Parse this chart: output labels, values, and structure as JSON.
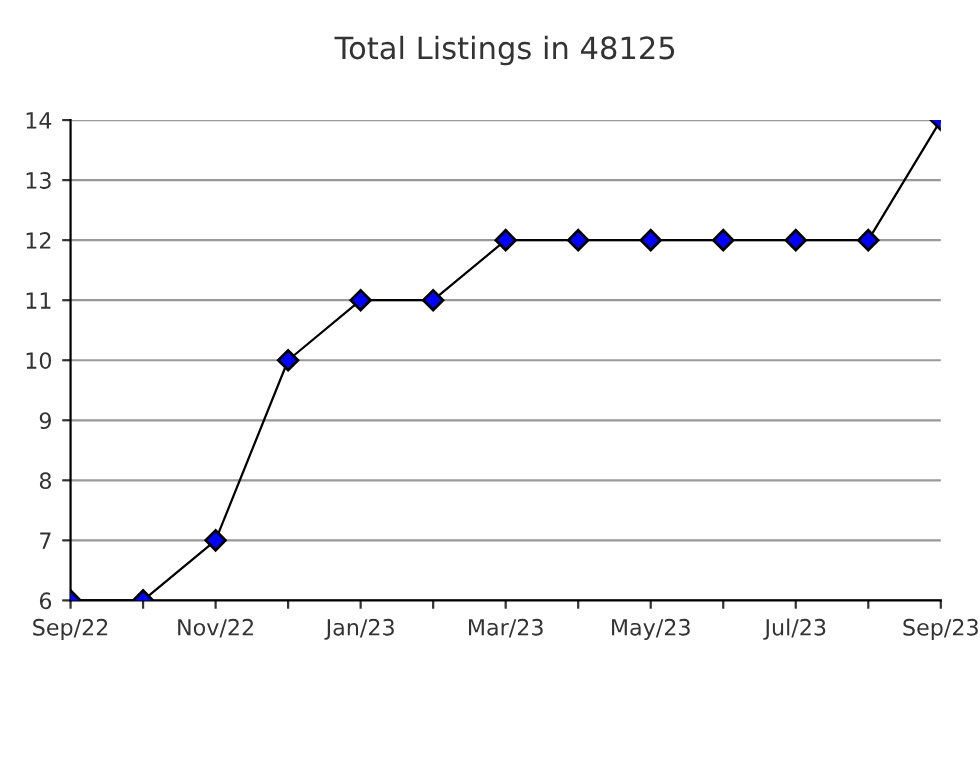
{
  "chart_data": {
    "type": "line",
    "title": "Total Listings in 48125",
    "categories": [
      "Sep/22",
      null,
      "Nov/22",
      null,
      "Jan/23",
      null,
      "Mar/23",
      null,
      "May/23",
      null,
      "Jul/23",
      null,
      "Sep/23"
    ],
    "series": [
      {
        "color": "#000000",
        "values": [
          6,
          6,
          7,
          10,
          11,
          11,
          12,
          12,
          12,
          12,
          12,
          12,
          14
        ]
      }
    ],
    "ylim": [
      6,
      14
    ],
    "yticks": [
      6,
      7,
      8,
      9,
      10,
      11,
      12,
      13,
      14
    ],
    "grid": "y",
    "marker": "diamond",
    "line_style": "solid"
  }
}
